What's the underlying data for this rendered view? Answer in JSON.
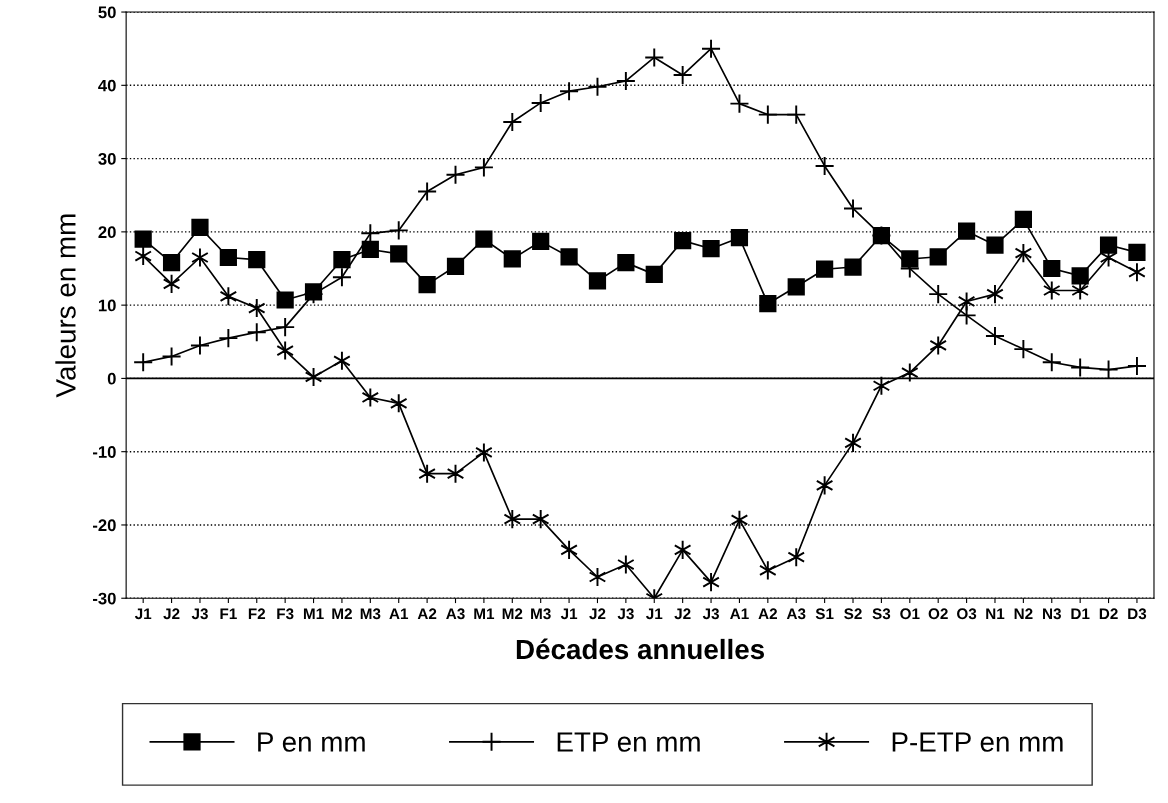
{
  "chart_data": {
    "type": "line",
    "xlabel": "Décades annuelles",
    "ylabel": "Valeurs en mm",
    "categories": [
      "J1",
      "J2",
      "J3",
      "F1",
      "F2",
      "F3",
      "M1",
      "M2",
      "M3",
      "A1",
      "A2",
      "A3",
      "M1",
      "M2",
      "M3",
      "J1",
      "J2",
      "J3",
      "J1",
      "J2",
      "J3",
      "A1",
      "A2",
      "A3",
      "S1",
      "S2",
      "S3",
      "O1",
      "O2",
      "O3",
      "N1",
      "N2",
      "N3",
      "D1",
      "D2",
      "D3"
    ],
    "series": [
      {
        "name": "P en mm",
        "color": "#000000",
        "marker": "square",
        "values": [
          19,
          15.8,
          20.6,
          16.5,
          16.2,
          10.7,
          11.8,
          16.2,
          17.6,
          17,
          12.8,
          15.3,
          19,
          16.3,
          18.7,
          16.6,
          13.3,
          15.8,
          14.2,
          18.8,
          17.7,
          19.2,
          10.2,
          12.5,
          14.9,
          15.2,
          19.5,
          16.3,
          16.6,
          20.1,
          18.2,
          21.7,
          15,
          14,
          18.2,
          17.2
        ]
      },
      {
        "name": "ETP en mm",
        "color": "#000000",
        "marker": "plus",
        "values": [
          2.2,
          3,
          4.5,
          5.5,
          6.3,
          7,
          11.5,
          13.8,
          19.8,
          20.2,
          25.5,
          27.8,
          28.8,
          35,
          37.6,
          39.2,
          39.8,
          40.6,
          43.8,
          41.4,
          45,
          37.5,
          36,
          36,
          29,
          23.2,
          19.5,
          15,
          11.5,
          8.6,
          5.8,
          4,
          2.2,
          1.5,
          1.2,
          1.7
        ]
      },
      {
        "name": "P-ETP en mm",
        "color": "#000000",
        "marker": "cross",
        "values": [
          16.7,
          12.9,
          16.5,
          11.2,
          9.6,
          3.8,
          0.2,
          2.4,
          -2.6,
          -3.4,
          -13,
          -13,
          -10.1,
          -19.2,
          -19.2,
          -23.4,
          -27.1,
          -25.4,
          -30,
          -23.4,
          -27.8,
          -19.3,
          -26.2,
          -24.4,
          -14.6,
          -8.8,
          -1,
          0.8,
          4.5,
          10.5,
          11.5,
          17.1,
          12,
          12,
          16.5,
          14.5
        ]
      }
    ],
    "ylim": [
      -30,
      50
    ],
    "yticks": [
      -30,
      -20,
      -10,
      0,
      10,
      20,
      30,
      40,
      50
    ],
    "ref_lines": [
      {
        "axis": "y",
        "value": 0,
        "color": "#000000",
        "line_style": "solid"
      }
    ],
    "grid": "y",
    "line_style": "solid",
    "legend": "bottom"
  }
}
